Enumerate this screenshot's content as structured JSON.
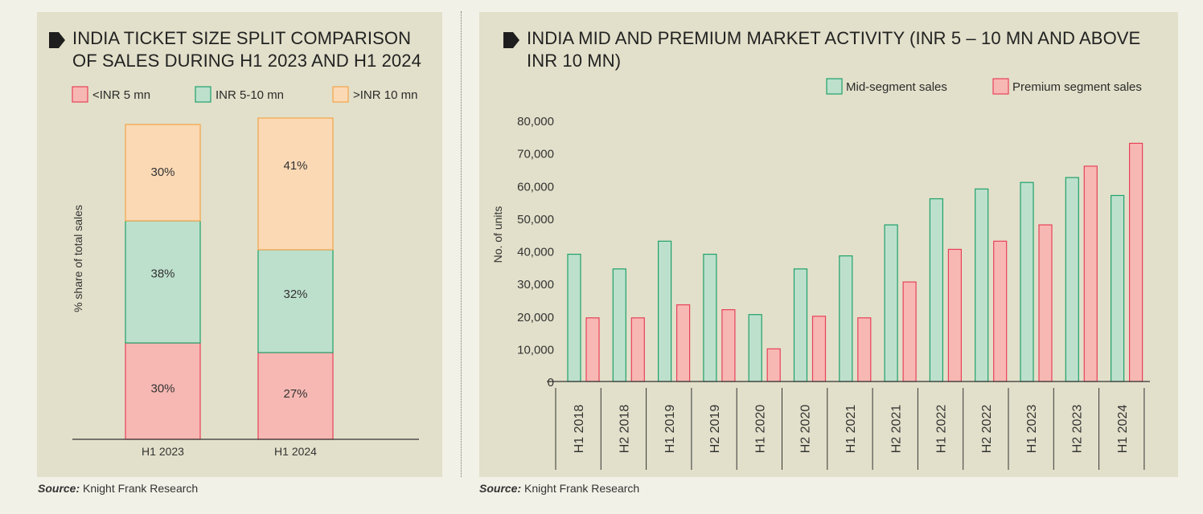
{
  "left_chart": {
    "title_line1": "INDIA TICKET SIZE SPLIT COMPARISON",
    "title_line2": "OF SALES DURING H1 2023 AND H1 2024",
    "source_label": "Source:",
    "source_text": "Knight Frank Research"
  },
  "right_chart": {
    "title_line1": "INDIA MID AND PREMIUM MARKET ACTIVITY (INR 5 – 10 MN AND ABOVE",
    "title_line2": "INR 10 MN)",
    "source_label": "Source:",
    "source_text": "Knight Frank Research"
  },
  "chart_data": [
    {
      "type": "bar",
      "stacked": true,
      "title": "INDIA TICKET SIZE SPLIT COMPARISON OF SALES DURING H1 2023 AND H1 2024",
      "ylabel": "% share of total sales",
      "xlabel": "",
      "categories": [
        "H1 2023",
        "H1 2024"
      ],
      "series": [
        {
          "name": "<INR 5 mn",
          "values": [
            30,
            27
          ],
          "labels": [
            "30%",
            "27%"
          ],
          "color": "#f7b8b3",
          "stroke": "#e8405a"
        },
        {
          "name": "INR 5-10 mn",
          "values": [
            38,
            32
          ],
          "labels": [
            "38%",
            "32%"
          ],
          "color": "#bde0cd",
          "stroke": "#1fa06a"
        },
        {
          "name": ">INR 10 mn",
          "values": [
            30,
            41
          ],
          "labels": [
            "30%",
            "41%"
          ],
          "color": "#fbd9b5",
          "stroke": "#f2a44a"
        }
      ],
      "legend_position": "top",
      "grid": false
    },
    {
      "type": "bar",
      "title": "INDIA MID AND PREMIUM MARKET ACTIVITY (INR 5 – 10 MN AND ABOVE INR 10 MN)",
      "ylabel": "No. of units",
      "xlabel": "",
      "ylim": [
        0,
        80000
      ],
      "yticks": [
        "0",
        "10,000",
        "20,000",
        "30,000",
        "40,000",
        "50,000",
        "60,000",
        "70,000",
        "80,000"
      ],
      "categories": [
        "H1 2018",
        "H2 2018",
        "H1 2019",
        "H2 2019",
        "H1 2020",
        "H2 2020",
        "H1 2021",
        "H2 2021",
        "H1 2022",
        "H2 2022",
        "H1 2023",
        "H2 2023",
        "H1 2024"
      ],
      "series": [
        {
          "name": "Mid-segment sales",
          "values": [
            39000,
            34500,
            43000,
            39000,
            20500,
            34500,
            38500,
            48000,
            56000,
            59000,
            61000,
            62500,
            57000
          ],
          "color": "#bde0cd",
          "stroke": "#1fa06a"
        },
        {
          "name": "Premium segment sales",
          "values": [
            19500,
            19500,
            23500,
            22000,
            10000,
            20000,
            19500,
            30500,
            40500,
            43000,
            48000,
            66000,
            73000
          ],
          "color": "#f7b8b3",
          "stroke": "#e8405a"
        }
      ],
      "legend_position": "top-right",
      "grid": false
    }
  ]
}
